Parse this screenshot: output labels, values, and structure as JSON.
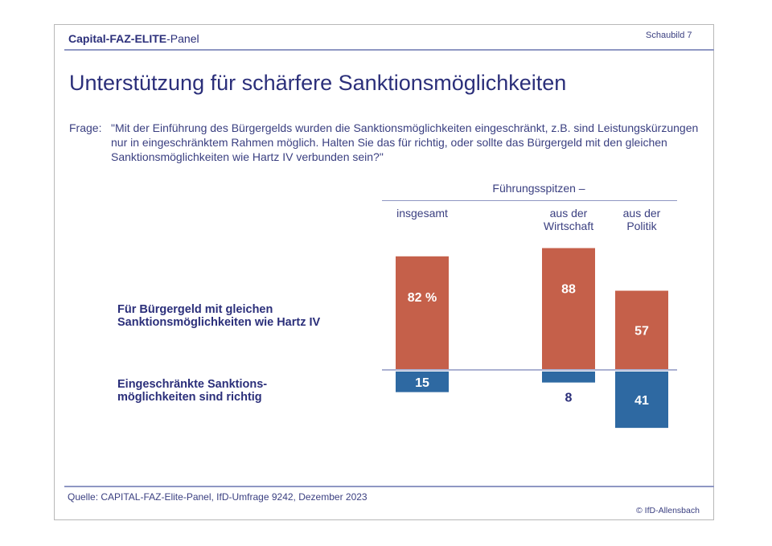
{
  "header": {
    "brand_bold": "Capital-FAZ-ELITE",
    "brand_rest": "-Panel",
    "figure_label": "Schaubild  7"
  },
  "title": "Unterstützung für schärfere Sanktionsmöglichkeiten",
  "question": {
    "label": "Frage:",
    "text": "\"Mit der Einführung des Bürgergelds wurden die Sanktionsmöglichkeiten eingeschränkt, z.B. sind Leistungskürzungen nur in eingeschränktem Rahmen möglich. Halten Sie das für richtig, oder sollte das Bürgergeld mit den gleichen Sanktionsmöglichkeiten wie Hartz IV verbunden sein?\""
  },
  "footer": {
    "source": "Quelle: CAPITAL-FAZ-Elite-Panel, IfD-Umfrage 9242, Dezember 2023",
    "copyright": "© IfD-Allensbach"
  },
  "chart_data": {
    "type": "bar",
    "group_header": "Führungsspitzen –",
    "categories": [
      "insgesamt",
      "aus der Wirtschaft",
      "aus der Politik"
    ],
    "series": [
      {
        "name": "Für Bürgergeld mit gleichen Sanktionsmöglichkeiten wie Hartz IV",
        "values": [
          82,
          88,
          57
        ],
        "labels": [
          "82 %",
          "88",
          "57"
        ],
        "color": "#c5604a",
        "direction": "up"
      },
      {
        "name": "Eingeschränkte Sanktionsmöglichkeiten sind richtig",
        "values": [
          15,
          8,
          41
        ],
        "labels": [
          "15",
          "8",
          "41"
        ],
        "color": "#2e69a2",
        "direction": "down"
      }
    ],
    "unit": "%"
  }
}
